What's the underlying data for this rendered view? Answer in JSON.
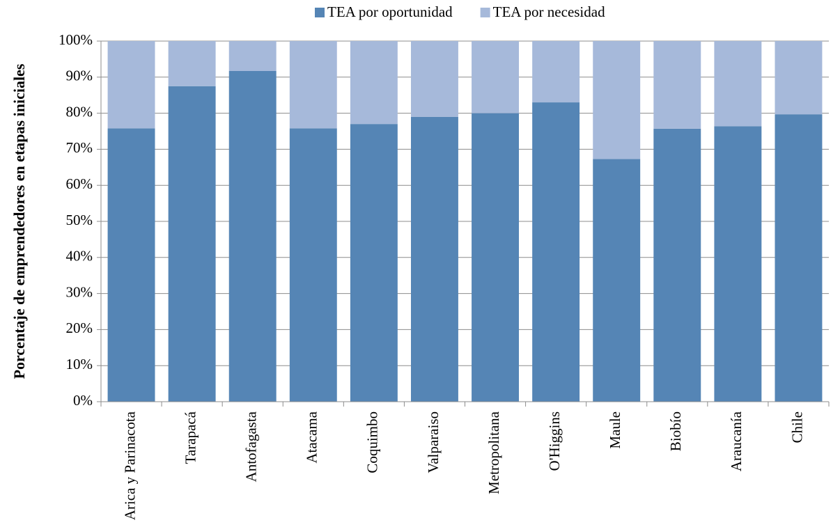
{
  "chart_data": {
    "type": "stacked_bar",
    "y_label": "Porcentaje de emprendedores en etapas iniciales",
    "categories": [
      "Arica y Parinacota",
      "Tarapacá",
      "Antofagasta",
      "Atacama",
      "Coquimbo",
      "Valparaiso",
      "Metropolitana",
      "O'Higgins",
      "Maule",
      "Biobío",
      "Araucanía",
      "Chile"
    ],
    "series": [
      {
        "name": "TEA por oportunidad",
        "color": "#5585b5",
        "values": [
          75.8,
          87.5,
          91.7,
          75.8,
          77,
          79,
          80,
          83,
          67.3,
          75.7,
          76.4,
          79.7
        ]
      },
      {
        "name": "TEA por necesidad",
        "color": "#a6b9da",
        "values": [
          24.2,
          12.5,
          8.3,
          24.2,
          23,
          21,
          20,
          17,
          32.7,
          24.3,
          23.6,
          20.3
        ]
      }
    ],
    "ylim": [
      0,
      100
    ],
    "yticks": [
      {
        "value": 0,
        "label": "0%"
      },
      {
        "value": 10,
        "label": "10%"
      },
      {
        "value": 20,
        "label": "20%"
      },
      {
        "value": 30,
        "label": "30%"
      },
      {
        "value": 40,
        "label": "40%"
      },
      {
        "value": 50,
        "label": "50%"
      },
      {
        "value": 60,
        "label": "60%"
      },
      {
        "value": 70,
        "label": "70%"
      },
      {
        "value": 80,
        "label": "80%"
      },
      {
        "value": 90,
        "label": "90%"
      },
      {
        "value": 100,
        "label": "100%"
      }
    ],
    "grid": true
  }
}
